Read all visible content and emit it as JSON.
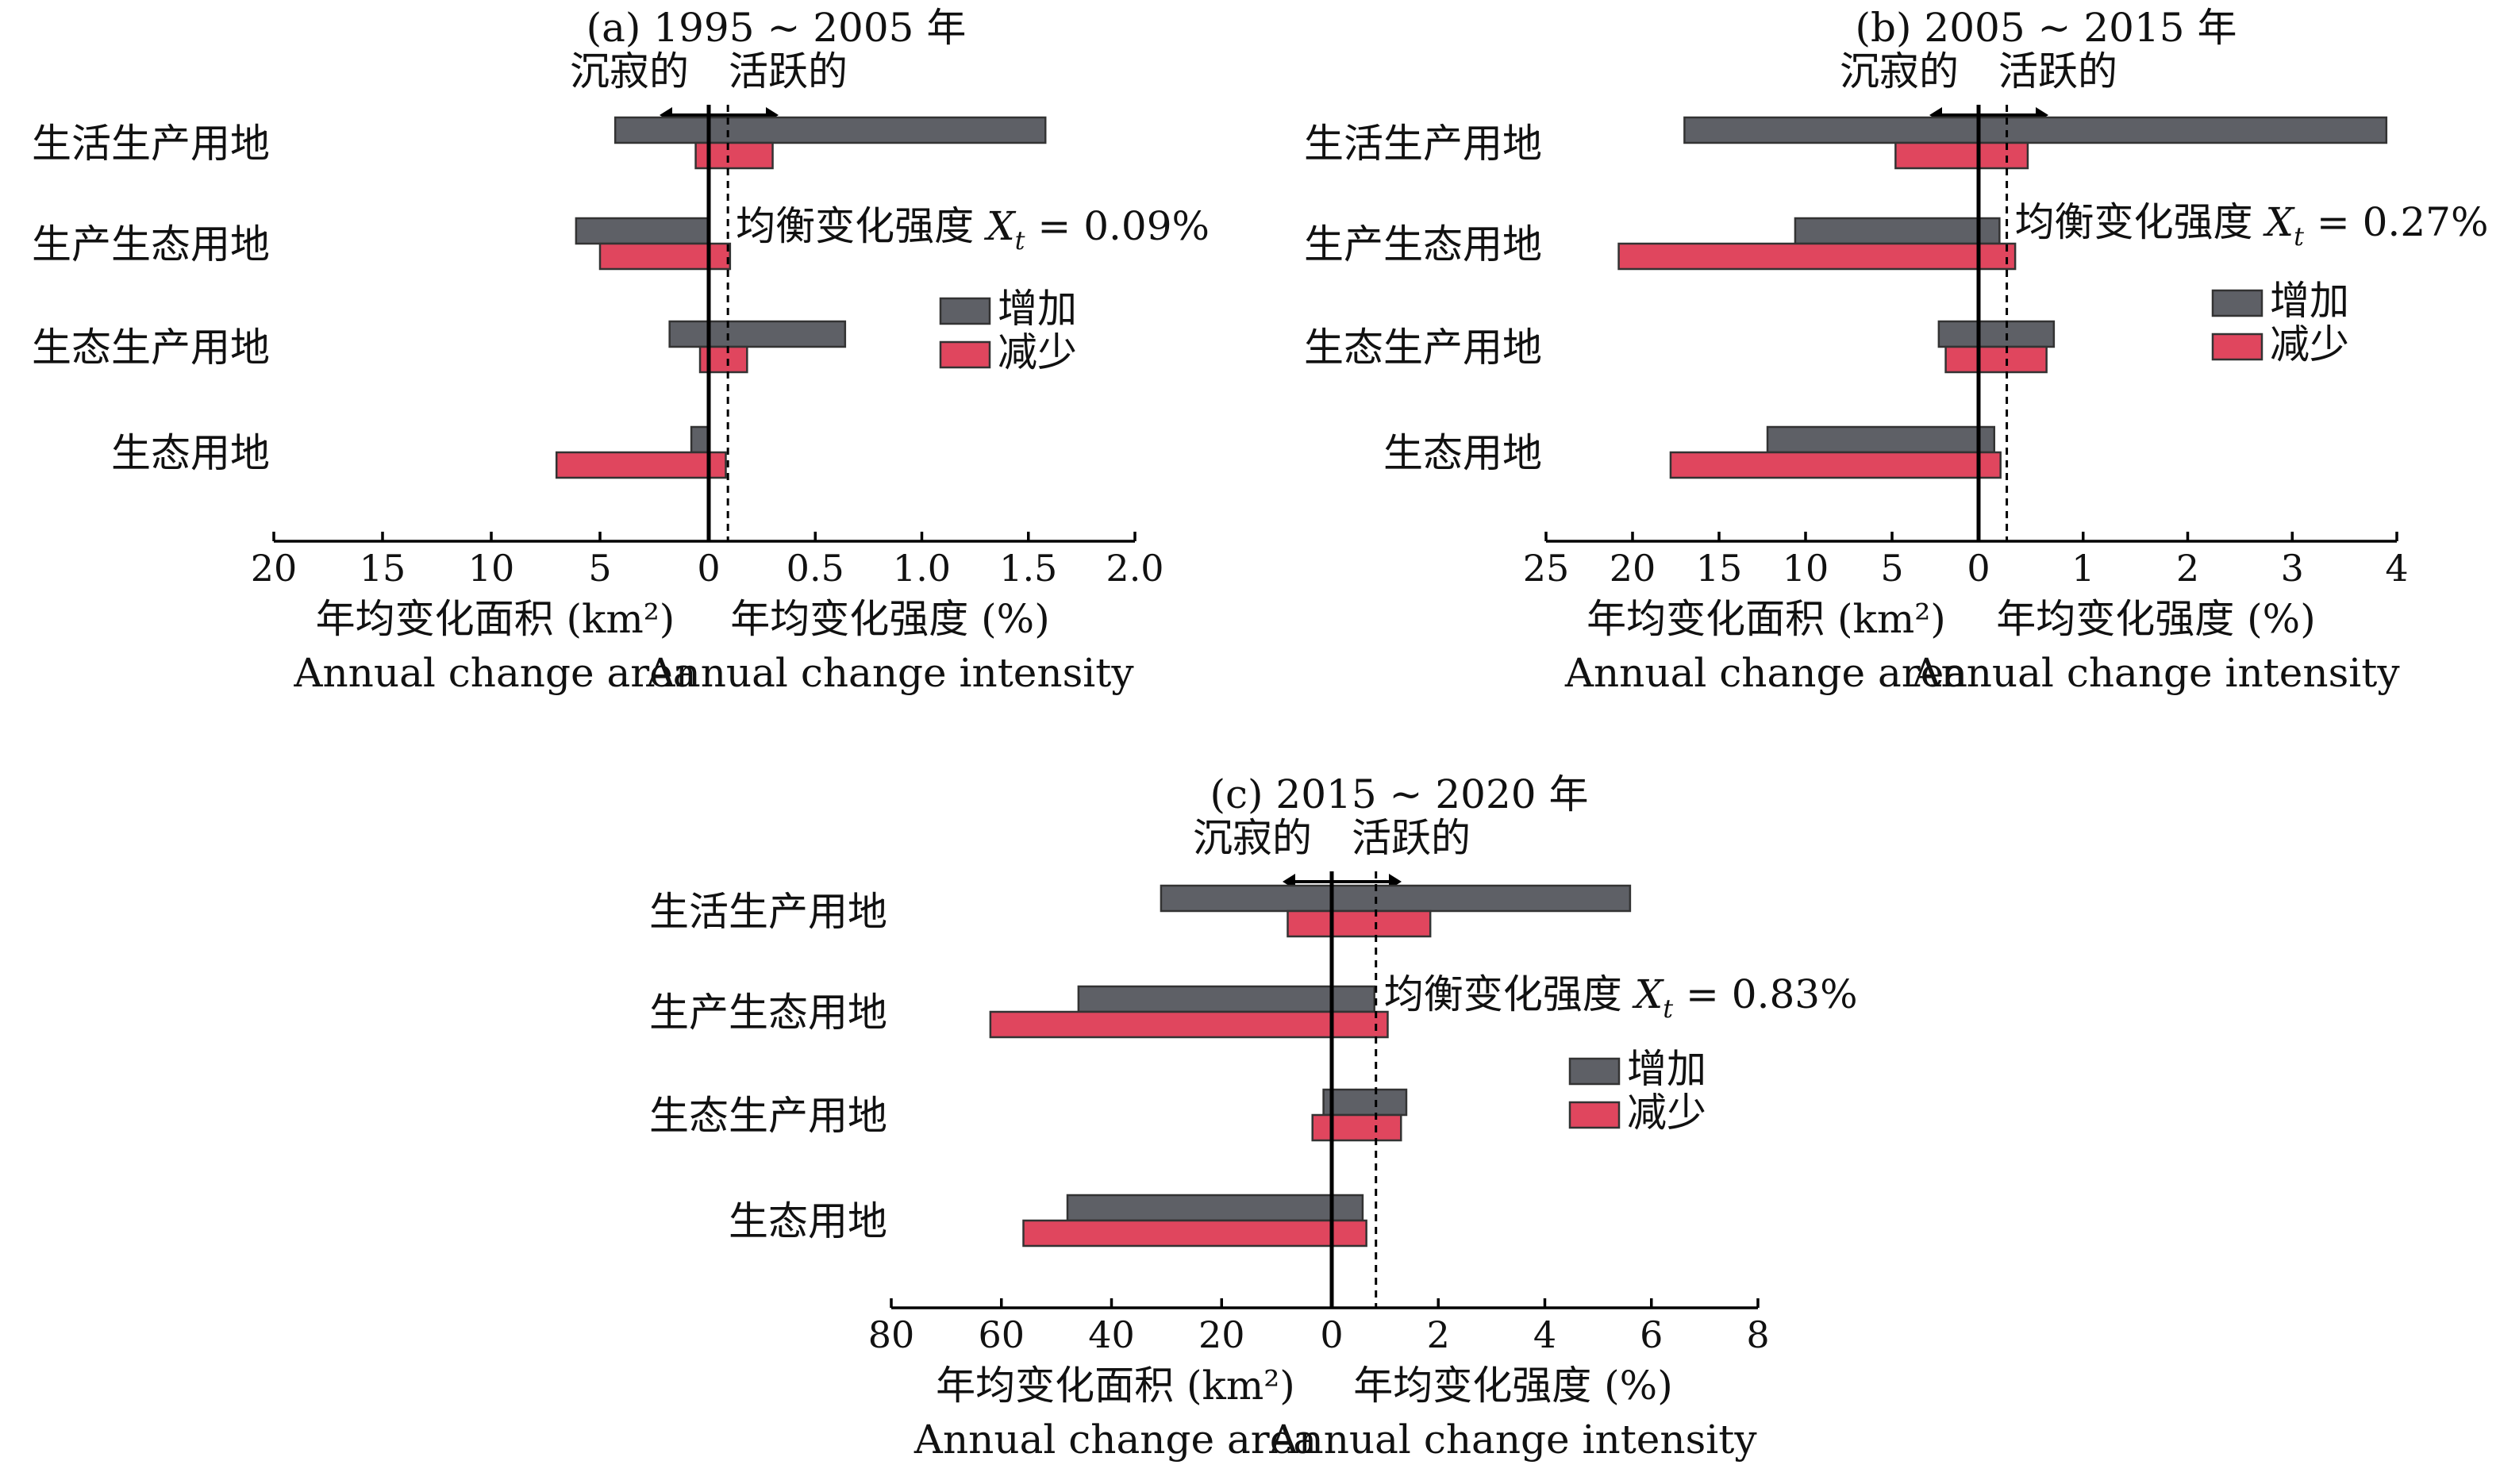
{
  "figure": {
    "legend": {
      "increase": "增加",
      "decrease": "减少"
    },
    "direction": {
      "left": "沉寂的",
      "right": "活跃的"
    }
  },
  "colors": {
    "increase": "#5e6066",
    "decrease": "#e0465e"
  },
  "chart_data": [
    {
      "type": "bar",
      "title": "(a) 1995 ~ 2005 年",
      "categories": [
        "生活生产用地",
        "生产生态用地",
        "生态生产用地",
        "生态用地"
      ],
      "left_axis": {
        "label": "年均变化面积 (km²)",
        "label_en": "Annual change area",
        "ticks": [
          20,
          15,
          10,
          5,
          0
        ],
        "range": [
          0,
          20
        ]
      },
      "right_axis": {
        "label": "年均变化强度 (%)",
        "label_en": "Annual change intensity",
        "ticks": [
          0.5,
          1.0,
          1.5,
          2.0
        ],
        "range": [
          0,
          2.0
        ]
      },
      "equilibrium": {
        "label": "均衡变化强度",
        "symbol": "X",
        "subscript": "t",
        "value_text": "= 0.09%",
        "value": 0.09
      },
      "series": [
        {
          "name": "增加",
          "area": [
            4.3,
            6.1,
            1.8,
            0.8
          ],
          "intensity": [
            1.58,
            0.0,
            0.64,
            0.0
          ]
        },
        {
          "name": "减少",
          "area": [
            0.6,
            5.0,
            0.4,
            7.0
          ],
          "intensity": [
            0.3,
            0.1,
            0.18,
            0.08
          ]
        }
      ]
    },
    {
      "type": "bar",
      "title": "(b) 2005 ~ 2015 年",
      "categories": [
        "生活生产用地",
        "生产生态用地",
        "生态生产用地",
        "生态用地"
      ],
      "left_axis": {
        "label": "年均变化面积 (km²)",
        "label_en": "Annual change area",
        "ticks": [
          25,
          20,
          15,
          10,
          5,
          0
        ],
        "range": [
          0,
          25
        ]
      },
      "right_axis": {
        "label": "年均变化强度 (%)",
        "label_en": "Annual change intensity",
        "ticks": [
          1,
          2,
          3,
          4
        ],
        "range": [
          0,
          4
        ]
      },
      "equilibrium": {
        "label": "均衡变化强度",
        "symbol": "X",
        "subscript": "t",
        "value_text": "= 0.27%",
        "value": 0.27
      },
      "series": [
        {
          "name": "增加",
          "area": [
            17.0,
            10.6,
            2.3,
            12.2
          ],
          "intensity": [
            3.9,
            0.2,
            0.72,
            0.15
          ]
        },
        {
          "name": "减少",
          "area": [
            4.8,
            20.8,
            1.9,
            17.8
          ],
          "intensity": [
            0.47,
            0.35,
            0.65,
            0.21
          ]
        }
      ]
    },
    {
      "type": "bar",
      "title": "(c) 2015 ~ 2020 年",
      "categories": [
        "生活生产用地",
        "生产生态用地",
        "生态生产用地",
        "生态用地"
      ],
      "left_axis": {
        "label": "年均变化面积 (km²)",
        "label_en": "Annual change area",
        "ticks": [
          80,
          60,
          40,
          20,
          0
        ],
        "range": [
          0,
          80
        ]
      },
      "right_axis": {
        "label": "年均变化强度 (%)",
        "label_en": "Annual change intensity",
        "ticks": [
          2,
          4,
          6,
          8
        ],
        "range": [
          0,
          8
        ]
      },
      "equilibrium": {
        "label": "均衡变化强度",
        "symbol": "X",
        "subscript": "t",
        "value_text": "= 0.83%",
        "value": 0.83
      },
      "series": [
        {
          "name": "增加",
          "area": [
            31.0,
            46.0,
            1.5,
            48.0
          ],
          "intensity": [
            5.6,
            0.8,
            1.4,
            0.58
          ]
        },
        {
          "name": "减少",
          "area": [
            8.0,
            62.0,
            3.5,
            56.0
          ],
          "intensity": [
            1.85,
            1.05,
            1.3,
            0.65
          ]
        }
      ]
    }
  ]
}
